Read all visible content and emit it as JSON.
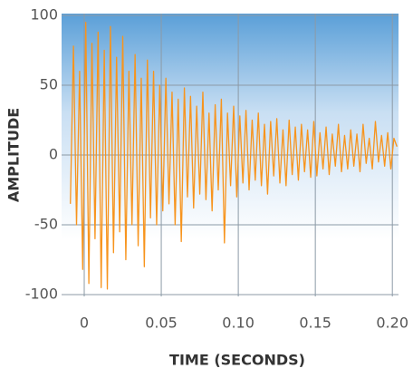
{
  "chart_data": {
    "type": "line",
    "x_label": "TIME (SECONDS)",
    "y_label": "AMPLITUDE",
    "color": "#f7941d",
    "grid": true,
    "xlim": [
      -0.0147,
      0.204
    ],
    "ylim": [
      -100,
      100
    ],
    "xticks": [
      0,
      0.05,
      {
        "value": 0.1,
        "label": "0.10"
      },
      0.15,
      {
        "value": 0.2,
        "label": "0.20"
      }
    ],
    "yticks": [
      100,
      50,
      0,
      -50,
      -100
    ],
    "x": [
      -0.009,
      -0.007,
      -0.005,
      -0.003,
      -0.001,
      0.001,
      0.003,
      0.005,
      0.007,
      0.009,
      0.011,
      0.013,
      0.015,
      0.017,
      0.019,
      0.021,
      0.023,
      0.025,
      0.027,
      0.029,
      0.031,
      0.033,
      0.035,
      0.037,
      0.039,
      0.041,
      0.043,
      0.045,
      0.047,
      0.049,
      0.051,
      0.053,
      0.055,
      0.057,
      0.059,
      0.061,
      0.063,
      0.065,
      0.067,
      0.069,
      0.071,
      0.073,
      0.075,
      0.077,
      0.079,
      0.081,
      0.083,
      0.085,
      0.087,
      0.089,
      0.091,
      0.093,
      0.095,
      0.097,
      0.099,
      0.101,
      0.103,
      0.105,
      0.107,
      0.109,
      0.111,
      0.113,
      0.115,
      0.117,
      0.119,
      0.121,
      0.123,
      0.125,
      0.127,
      0.129,
      0.131,
      0.133,
      0.135,
      0.137,
      0.139,
      0.141,
      0.143,
      0.145,
      0.147,
      0.149,
      0.151,
      0.153,
      0.155,
      0.157,
      0.159,
      0.161,
      0.163,
      0.165,
      0.167,
      0.169,
      0.171,
      0.173,
      0.175,
      0.177,
      0.179,
      0.181,
      0.183,
      0.185,
      0.187,
      0.189,
      0.191,
      0.193,
      0.195,
      0.197,
      0.199,
      0.201,
      0.203
    ],
    "values": [
      -35,
      78,
      -50,
      60,
      -82,
      95,
      -92,
      80,
      -60,
      88,
      -95,
      75,
      -96,
      92,
      -70,
      70,
      -55,
      85,
      -75,
      60,
      -50,
      72,
      -65,
      55,
      -80,
      68,
      -45,
      60,
      -50,
      50,
      -40,
      55,
      -35,
      45,
      -50,
      40,
      -62,
      48,
      -30,
      42,
      -38,
      35,
      -28,
      45,
      -32,
      30,
      -40,
      36,
      -25,
      40,
      -63,
      30,
      -22,
      35,
      -30,
      28,
      -20,
      32,
      -25,
      25,
      -18,
      30,
      -22,
      22,
      -28,
      24,
      -15,
      26,
      -20,
      18,
      -22,
      25,
      -14,
      20,
      -18,
      22,
      -12,
      18,
      -16,
      24,
      -15,
      16,
      -10,
      20,
      -14,
      15,
      -8,
      22,
      -12,
      14,
      -10,
      18,
      -8,
      15,
      -12,
      22,
      -6,
      12,
      -10,
      24,
      -5,
      14,
      -8,
      16,
      -10,
      12,
      6
    ]
  }
}
